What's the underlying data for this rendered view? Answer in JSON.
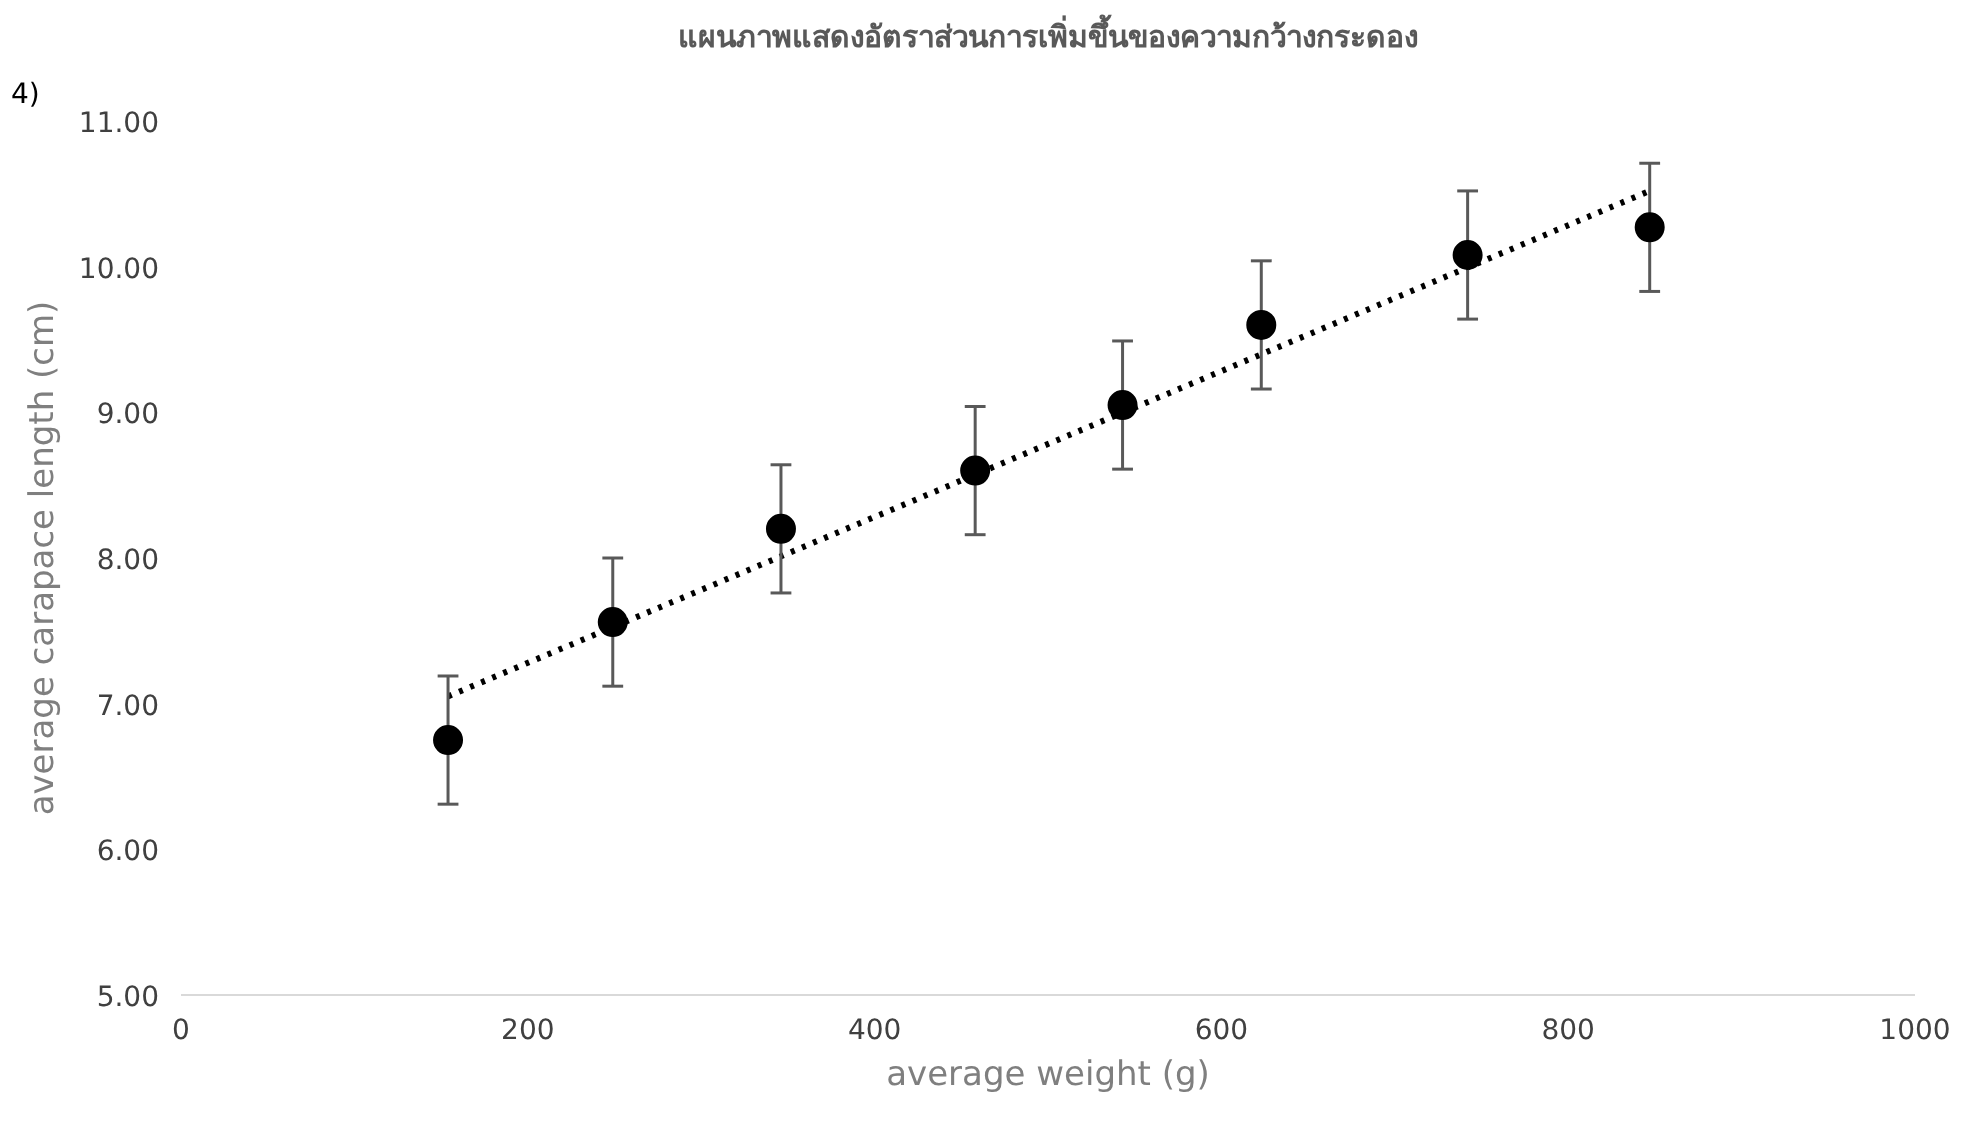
{
  "chart_data": {
    "type": "scatter",
    "title": "แผนภาพแสดงอัตราส่วนการเพิ่มขึ้นของความกว้างกระดอง",
    "xlabel": "average weight (g)",
    "ylabel": "average carapace length (cm)",
    "annotations": [
      "4)"
    ],
    "marker": "circle",
    "grid": false,
    "xlim": [
      0,
      1000
    ],
    "xticks": [
      0,
      200,
      400,
      600,
      800,
      1000
    ],
    "ylim": [
      5,
      11
    ],
    "yticks": [
      {
        "value": 5,
        "label": "5.00"
      },
      {
        "value": 6,
        "label": "6.00"
      },
      {
        "value": 7,
        "label": "7.00"
      },
      {
        "value": 8,
        "label": "8.00"
      },
      {
        "value": 9,
        "label": "9.00"
      },
      {
        "value": 10,
        "label": "10.00"
      },
      {
        "value": 11,
        "label": "11.00"
      }
    ],
    "series": [
      {
        "color": "#000000",
        "x": [
          154,
          249,
          346,
          458,
          543,
          623,
          742,
          847
        ],
        "values": [
          6.75,
          7.56,
          8.2,
          8.6,
          9.05,
          9.6,
          10.08,
          10.27
        ],
        "errors": [
          0.44,
          0.44,
          0.44,
          0.44,
          0.44,
          0.44,
          0.44,
          0.44
        ]
      },
      {
        "type": "line",
        "color": "#000000",
        "line_style": "dotted",
        "marker": "none",
        "x": [
          154,
          847
        ],
        "values": [
          7.05,
          10.52
        ]
      }
    ]
  }
}
